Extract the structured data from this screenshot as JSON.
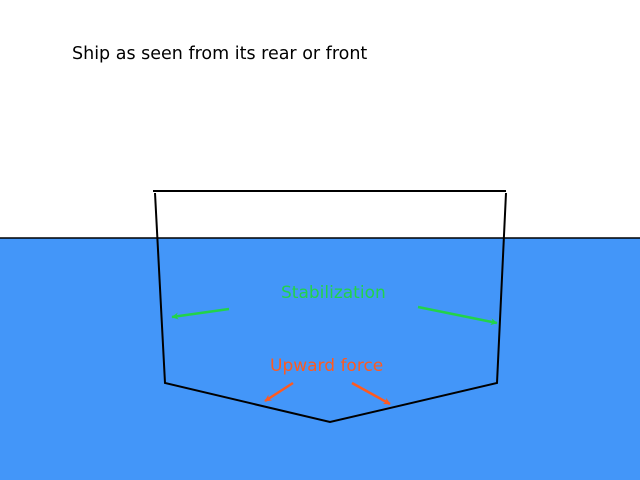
{
  "diagram": {
    "title": "Ship as seen from its rear or front",
    "labels": {
      "stabilization": "Stabilization",
      "upward_force": "Upward force"
    },
    "colors": {
      "water": "#4396f9",
      "background": "#ffffff",
      "hull": "#000000",
      "stabilization": "#22d34a",
      "upward_force": "#ff5a1f"
    }
  }
}
